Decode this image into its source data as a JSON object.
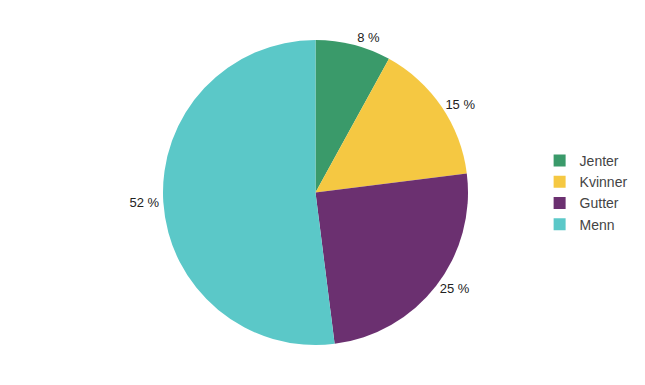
{
  "chart_data": {
    "type": "pie",
    "categories": [
      "Jenter",
      "Kvinner",
      "Gutter",
      "Menn"
    ],
    "values": [
      8,
      15,
      25,
      52
    ],
    "value_labels": [
      "8 %",
      "15 %",
      "25 %",
      "52 %"
    ],
    "colors": [
      "#3a9a6a",
      "#f5c842",
      "#6b3070",
      "#5bc8c8"
    ],
    "data_labels": true,
    "legend": "right"
  }
}
